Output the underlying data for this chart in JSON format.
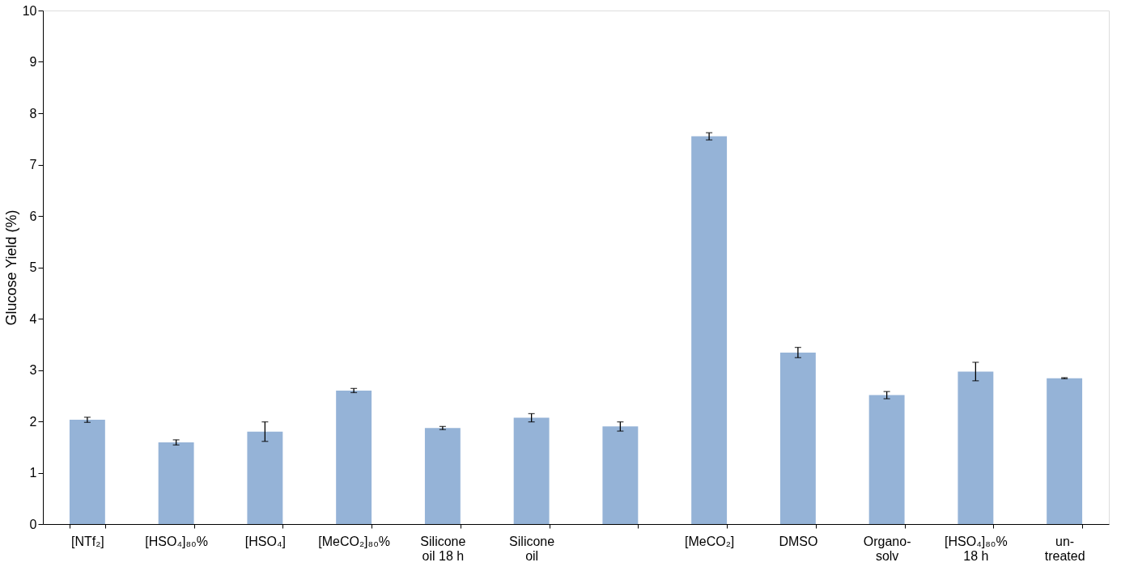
{
  "chart_data": {
    "type": "bar",
    "ylabel": "Glucose Yield (%)",
    "categories": [
      "[NTf₂]",
      "[HSO₄]₈₀%",
      "[HSO₄]",
      "[MeCO₂]₈₀%",
      "Silicone oil 18 h",
      "Silicone oil",
      null,
      "[MeCO₂]",
      "DMSO",
      "Organo-solv",
      "[HSO₄]₈₀% 18 h",
      "un-treated"
    ],
    "values": [
      2.03,
      1.59,
      1.8,
      2.6,
      1.87,
      2.07,
      1.9,
      7.55,
      3.34,
      2.51,
      2.97,
      2.84
    ],
    "errors": [
      0.05,
      0.05,
      0.19,
      0.04,
      0.03,
      0.08,
      0.09,
      0.07,
      0.1,
      0.07,
      0.18,
      0.01
    ],
    "color": "#95b3d7",
    "ylim": [
      0,
      10
    ],
    "yticks": [
      0,
      1,
      2,
      3,
      4,
      5,
      6,
      7,
      8,
      9,
      10
    ],
    "grid": false
  }
}
